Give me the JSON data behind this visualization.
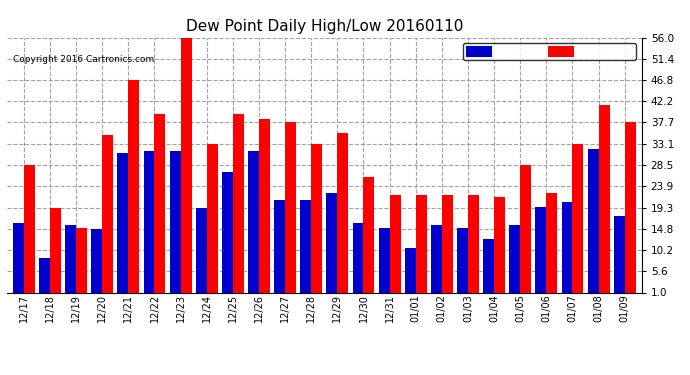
{
  "title": "Dew Point Daily High/Low 20160110",
  "copyright": "Copyright 2016 Cartronics.com",
  "categories": [
    "12/17",
    "12/18",
    "12/19",
    "12/20",
    "12/21",
    "12/22",
    "12/23",
    "12/24",
    "12/25",
    "12/26",
    "12/27",
    "12/28",
    "12/29",
    "12/30",
    "12/31",
    "01/01",
    "01/02",
    "01/03",
    "01/04",
    "01/05",
    "01/06",
    "01/07",
    "01/08",
    "01/09"
  ],
  "high_values": [
    28.5,
    19.3,
    15.0,
    35.0,
    46.8,
    39.5,
    56.0,
    33.1,
    39.5,
    38.5,
    37.7,
    33.1,
    35.5,
    26.0,
    22.0,
    22.0,
    22.0,
    22.0,
    21.5,
    28.5,
    22.5,
    33.1,
    41.5,
    37.7
  ],
  "low_values": [
    16.0,
    8.5,
    15.5,
    14.8,
    31.0,
    31.5,
    31.5,
    19.3,
    27.0,
    31.5,
    21.0,
    21.0,
    22.5,
    16.0,
    15.0,
    10.5,
    15.5,
    15.0,
    12.5,
    15.5,
    19.5,
    20.5,
    32.0,
    17.5
  ],
  "high_color": "#ff0000",
  "low_color": "#0000cc",
  "bg_color": "#ffffff",
  "grid_color": "#999999",
  "ylim_min": 1.0,
  "ylim_max": 56.0,
  "yticks": [
    1.0,
    5.6,
    10.2,
    14.8,
    19.3,
    23.9,
    28.5,
    33.1,
    37.7,
    42.2,
    46.8,
    51.4,
    56.0
  ],
  "bar_width": 0.42
}
